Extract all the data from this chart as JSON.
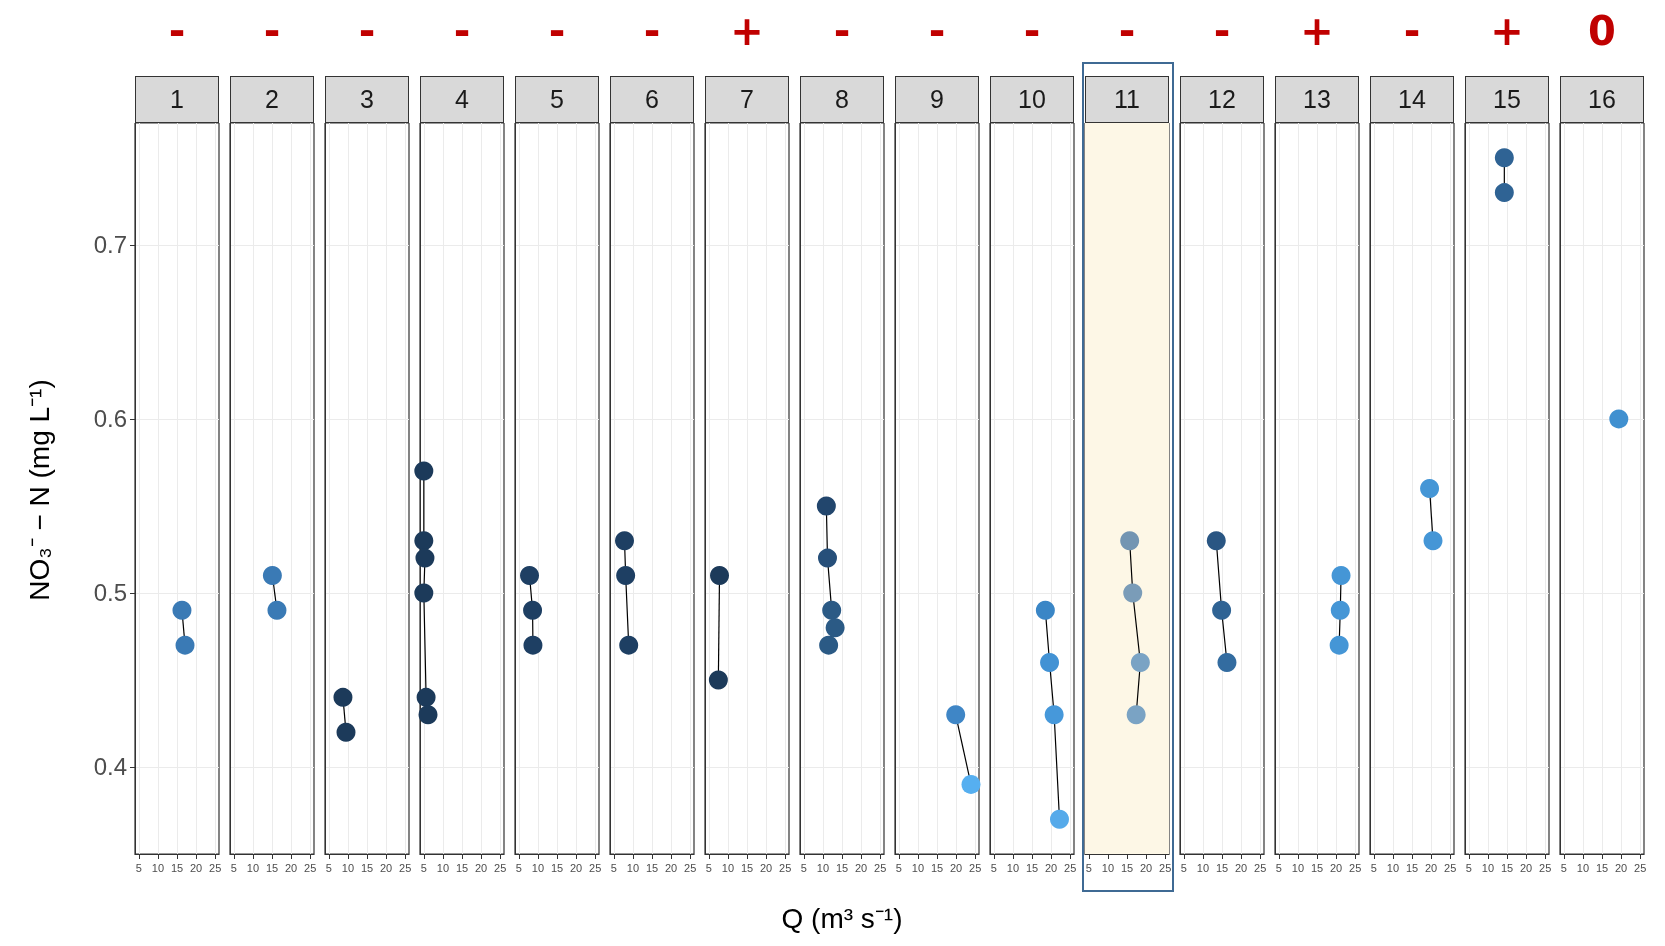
{
  "chart_data": [
    {
      "type": "line",
      "title": "1",
      "annotations": [
        "-"
      ],
      "ylabel": "NO₃⁻ − N (mg L⁻¹)",
      "xlim": [
        4,
        26
      ],
      "xticks": [
        5,
        10,
        15,
        20,
        25
      ],
      "ylim": [
        0.35,
        0.77
      ],
      "yticks": [
        0.4,
        0.5,
        0.6,
        0.7
      ],
      "grid": true,
      "marker": "circle",
      "series": [
        {
          "color": "#000000",
          "x": [
            16.3,
            17.1
          ],
          "values": [
            0.49,
            0.47
          ],
          "colors": [
            "#3a7ab5",
            "#3a7ab5"
          ]
        }
      ]
    },
    {
      "type": "line",
      "title": "2",
      "annotations": [
        "-"
      ],
      "xlim": [
        4,
        26
      ],
      "xticks": [
        5,
        10,
        15,
        20,
        25
      ],
      "ylim": [
        0.35,
        0.77
      ],
      "yticks": [
        0.4,
        0.5,
        0.6,
        0.7
      ],
      "grid": true,
      "marker": "circle",
      "tick_labels": "x",
      "series": [
        {
          "color": "#000000",
          "x": [
            15.1,
            16.3
          ],
          "values": [
            0.51,
            0.49
          ],
          "colors": [
            "#3a7ab5",
            "#3a7ab5"
          ]
        }
      ]
    },
    {
      "type": "line",
      "title": "3",
      "annotations": [
        "-"
      ],
      "xlim": [
        4,
        26
      ],
      "xticks": [
        5,
        10,
        15,
        20,
        25
      ],
      "ylim": [
        0.35,
        0.77
      ],
      "yticks": [
        0.4,
        0.5,
        0.6,
        0.7
      ],
      "grid": true,
      "marker": "circle",
      "tick_labels": "x",
      "series": [
        {
          "color": "#000000",
          "x": [
            8.7,
            9.5
          ],
          "values": [
            0.44,
            0.42
          ],
          "colors": [
            "#1c3a5a",
            "#1c3a5a"
          ]
        }
      ]
    },
    {
      "type": "line",
      "title": "4",
      "annotations": [
        "-"
      ],
      "xlim": [
        4,
        26
      ],
      "xticks": [
        5,
        10,
        15,
        20,
        25
      ],
      "ylim": [
        0.35,
        0.77
      ],
      "yticks": [
        0.4,
        0.5,
        0.6,
        0.7
      ],
      "grid": true,
      "marker": "circle",
      "tick_labels": "x",
      "series": [
        {
          "color": "#000000",
          "x": [
            5.0,
            5.0,
            5.3,
            5.0,
            5.6,
            6.1
          ],
          "values": [
            0.57,
            0.53,
            0.52,
            0.5,
            0.44,
            0.43
          ],
          "colors": [
            "#1c3a5a",
            "#1c3a5a",
            "#1c3a5a",
            "#1c3a5a",
            "#1c3a5a",
            "#1c3a5a"
          ]
        }
      ]
    },
    {
      "type": "line",
      "title": "5",
      "annotations": [
        "-"
      ],
      "xlim": [
        4,
        26
      ],
      "xticks": [
        5,
        10,
        15,
        20,
        25
      ],
      "ylim": [
        0.35,
        0.77
      ],
      "yticks": [
        0.4,
        0.5,
        0.6,
        0.7
      ],
      "grid": true,
      "marker": "circle",
      "tick_labels": "x",
      "series": [
        {
          "color": "#000000",
          "x": [
            7.8,
            8.6,
            8.7
          ],
          "values": [
            0.51,
            0.49,
            0.47
          ],
          "colors": [
            "#1e3f63",
            "#1e3f63",
            "#1e3f63"
          ]
        }
      ]
    },
    {
      "type": "line",
      "title": "6",
      "annotations": [
        "-"
      ],
      "xlim": [
        4,
        26
      ],
      "xticks": [
        5,
        10,
        15,
        20,
        25
      ],
      "ylim": [
        0.35,
        0.77
      ],
      "yticks": [
        0.4,
        0.5,
        0.6,
        0.7
      ],
      "grid": true,
      "marker": "circle",
      "tick_labels": "x",
      "series": [
        {
          "color": "#000000",
          "x": [
            7.8,
            8.1,
            8.9
          ],
          "values": [
            0.53,
            0.51,
            0.47
          ],
          "colors": [
            "#1e3f63",
            "#1e3f63",
            "#1e3f63"
          ]
        }
      ]
    },
    {
      "type": "line",
      "title": "7",
      "annotations": [
        "+"
      ],
      "xlim": [
        4,
        26
      ],
      "xticks": [
        5,
        10,
        15,
        20,
        25
      ],
      "ylim": [
        0.35,
        0.77
      ],
      "yticks": [
        0.4,
        0.5,
        0.6,
        0.7
      ],
      "grid": true,
      "marker": "circle",
      "tick_labels": "x",
      "series": [
        {
          "color": "#000000",
          "x": [
            7.8,
            7.5
          ],
          "values": [
            0.51,
            0.45
          ],
          "colors": [
            "#1c3a5a",
            "#1c3a5a"
          ]
        }
      ]
    },
    {
      "type": "line",
      "title": "8",
      "annotations": [
        "-"
      ],
      "xlabel": "Q (m³ s⁻¹)",
      "xlim": [
        4,
        26
      ],
      "xticks": [
        5,
        10,
        15,
        20,
        25
      ],
      "ylim": [
        0.35,
        0.77
      ],
      "yticks": [
        0.4,
        0.5,
        0.6,
        0.7
      ],
      "grid": true,
      "marker": "circle",
      "tick_labels": "x",
      "series": [
        {
          "color": "#000000",
          "x": [
            10.9,
            11.2,
            12.3,
            13.2,
            11.5
          ],
          "values": [
            0.55,
            0.52,
            0.49,
            0.48,
            0.47
          ],
          "colors": [
            "#22466d",
            "#264f7a",
            "#2b5a85",
            "#2b5a85",
            "#2b5a85"
          ]
        }
      ]
    },
    {
      "type": "line",
      "title": "9",
      "annotations": [
        "-"
      ],
      "xlim": [
        4,
        26
      ],
      "xticks": [
        5,
        10,
        15,
        20,
        25
      ],
      "ylim": [
        0.35,
        0.77
      ],
      "yticks": [
        0.4,
        0.5,
        0.6,
        0.7
      ],
      "grid": true,
      "marker": "circle",
      "tick_labels": "x",
      "series": [
        {
          "color": "#000000",
          "x": [
            19.9,
            23.9
          ],
          "values": [
            0.43,
            0.39
          ],
          "colors": [
            "#3f86c6",
            "#56aff0"
          ]
        }
      ]
    },
    {
      "type": "line",
      "title": "10",
      "annotations": [
        "-"
      ],
      "xlim": [
        4,
        26
      ],
      "xticks": [
        5,
        10,
        15,
        20,
        25
      ],
      "ylim": [
        0.35,
        0.77
      ],
      "yticks": [
        0.4,
        0.5,
        0.6,
        0.7
      ],
      "grid": true,
      "marker": "circle",
      "tick_labels": "x",
      "series": [
        {
          "color": "#000000",
          "x": [
            18.5,
            19.6,
            20.8,
            22.2
          ],
          "values": [
            0.49,
            0.46,
            0.43,
            0.37
          ],
          "colors": [
            "#3a86c6",
            "#4292d4",
            "#4698da",
            "#56aaea"
          ]
        }
      ]
    },
    {
      "type": "line",
      "title": "11",
      "annotations": [
        "-"
      ],
      "xlim": [
        4,
        26
      ],
      "xticks": [
        5,
        10,
        15,
        20,
        25
      ],
      "ylim": [
        0.35,
        0.77
      ],
      "yticks": [
        0.4,
        0.5,
        0.6,
        0.7
      ],
      "grid": true,
      "marker": "circle",
      "tick_labels": "x",
      "bands": [
        {
          "axis": "x",
          "from": 4,
          "to": 26,
          "color": "#fdf7e6"
        }
      ],
      "series": [
        {
          "color": "#000000",
          "x": [
            15.7,
            16.5,
            18.5,
            17.4
          ],
          "values": [
            0.53,
            0.5,
            0.46,
            0.43
          ],
          "colors": [
            "#7395b2",
            "#7a9cb8",
            "#7aa3c4",
            "#7aa3c4"
          ]
        }
      ]
    },
    {
      "type": "line",
      "title": "12",
      "annotations": [
        "-"
      ],
      "xlim": [
        4,
        26
      ],
      "xticks": [
        5,
        10,
        15,
        20,
        25
      ],
      "ylim": [
        0.35,
        0.77
      ],
      "yticks": [
        0.4,
        0.5,
        0.6,
        0.7
      ],
      "grid": true,
      "marker": "circle",
      "tick_labels": "x",
      "series": [
        {
          "color": "#000000",
          "x": [
            13.5,
            14.9,
            16.3
          ],
          "values": [
            0.53,
            0.49,
            0.46
          ],
          "colors": [
            "#2a5683",
            "#2f6394",
            "#336ca0"
          ]
        }
      ]
    },
    {
      "type": "line",
      "title": "13",
      "annotations": [
        "+"
      ],
      "xlim": [
        4,
        26
      ],
      "xticks": [
        5,
        10,
        15,
        20,
        25
      ],
      "ylim": [
        0.35,
        0.77
      ],
      "yticks": [
        0.4,
        0.5,
        0.6,
        0.7
      ],
      "grid": true,
      "marker": "circle",
      "tick_labels": "x",
      "series": [
        {
          "color": "#000000",
          "x": [
            21.3,
            21.1,
            20.8
          ],
          "values": [
            0.51,
            0.49,
            0.47
          ],
          "colors": [
            "#4596d6",
            "#4596d6",
            "#4596d6"
          ]
        }
      ]
    },
    {
      "type": "line",
      "title": "14",
      "annotations": [
        "-"
      ],
      "xlim": [
        4,
        26
      ],
      "xticks": [
        5,
        10,
        15,
        20,
        25
      ],
      "ylim": [
        0.35,
        0.77
      ],
      "yticks": [
        0.4,
        0.5,
        0.6,
        0.7
      ],
      "grid": true,
      "marker": "circle",
      "tick_labels": "x",
      "series": [
        {
          "color": "#000000",
          "x": [
            19.6,
            20.5
          ],
          "values": [
            0.56,
            0.53
          ],
          "colors": [
            "#4596d6",
            "#4596d6"
          ]
        }
      ]
    },
    {
      "type": "line",
      "title": "15",
      "annotations": [
        "+"
      ],
      "xlim": [
        4,
        26
      ],
      "xticks": [
        5,
        10,
        15,
        20,
        25
      ],
      "ylim": [
        0.35,
        0.77
      ],
      "yticks": [
        0.4,
        0.5,
        0.6,
        0.7
      ],
      "grid": true,
      "marker": "circle",
      "tick_labels": "x",
      "series": [
        {
          "color": "#000000",
          "x": [
            14.3,
            14.3
          ],
          "values": [
            0.75,
            0.73
          ],
          "colors": [
            "#2f6394",
            "#2f6394"
          ]
        }
      ]
    },
    {
      "type": "line",
      "title": "16",
      "annotations": [
        "0"
      ],
      "xlim": [
        4,
        26
      ],
      "xticks": [
        5,
        10,
        15,
        20,
        25
      ],
      "ylim": [
        0.35,
        0.77
      ],
      "yticks": [
        0.4,
        0.5,
        0.6,
        0.7
      ],
      "grid": true,
      "marker": "circle",
      "tick_labels": "x",
      "series": [
        {
          "color": "#000000",
          "x": [
            19.4
          ],
          "values": [
            0.6
          ],
          "colors": [
            "#4090d0"
          ]
        }
      ]
    }
  ]
}
